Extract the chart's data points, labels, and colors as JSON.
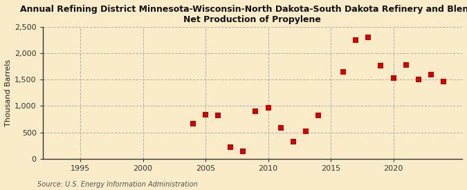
{
  "title_line1": "Annual Refining District Minnesota-Wisconsin-North Dakota-South Dakota Refinery and Blender",
  "title_line2": "Net Production of Propylene",
  "ylabel": "Thousand Barrels",
  "source": "Source: U.S. Energy Information Administration",
  "background_color": "#faecc8",
  "plot_bg_color": "#faecc8",
  "grid_color": "#b0b0b0",
  "data_points": [
    [
      2004,
      665
    ],
    [
      2005,
      830
    ],
    [
      2006,
      820
    ],
    [
      2007,
      215
    ],
    [
      2008,
      145
    ],
    [
      2009,
      900
    ],
    [
      2010,
      970
    ],
    [
      2011,
      590
    ],
    [
      2012,
      330
    ],
    [
      2013,
      520
    ],
    [
      2014,
      820
    ],
    [
      2016,
      1650
    ],
    [
      2017,
      2250
    ],
    [
      2018,
      2300
    ],
    [
      2019,
      1770
    ],
    [
      2020,
      1530
    ],
    [
      2021,
      1780
    ],
    [
      2022,
      1500
    ],
    [
      2023,
      1600
    ],
    [
      2024,
      1470
    ]
  ],
  "marker_color": "#cc0000",
  "marker_size": 28,
  "xlim": [
    1992,
    2025.5
  ],
  "ylim": [
    0,
    2500
  ],
  "xticks": [
    1995,
    2000,
    2005,
    2010,
    2015,
    2020
  ],
  "yticks": [
    0,
    500,
    1000,
    1500,
    2000,
    2500
  ],
  "ytick_labels": [
    "0",
    "500",
    "1,000",
    "1,500",
    "2,000",
    "2,500"
  ],
  "title_fontsize": 9,
  "axis_fontsize": 8,
  "tick_fontsize": 8,
  "source_fontsize": 7
}
